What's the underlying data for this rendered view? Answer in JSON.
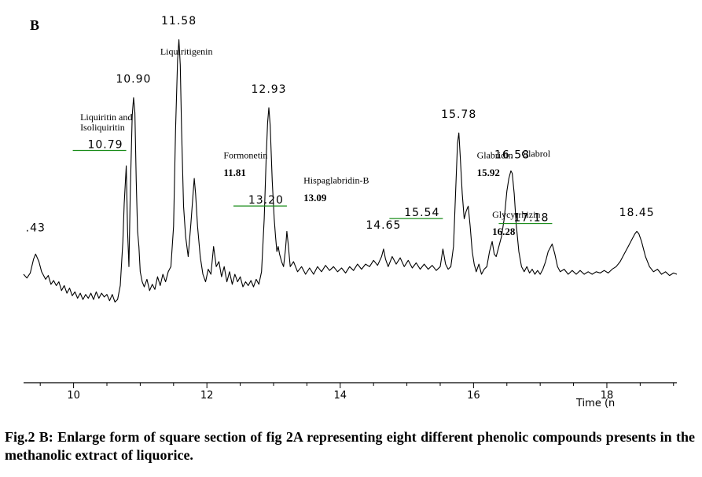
{
  "panel_label": "B",
  "caption": "Fig.2 B: Enlarge form of square section of fig 2A representing eight different phenolic compounds presents in the methanolic extract of liquorice.",
  "colors": {
    "trace": "#000000",
    "baseline_marker": "#1a8c1a"
  },
  "chart_data": {
    "type": "line",
    "title": "",
    "xlabel": "Time (n",
    "ylabel": "",
    "xlim": [
      9.25,
      19.05
    ],
    "ylim": [
      -2.0,
      12.3
    ],
    "x_ticks": [
      "10",
      "12",
      "14",
      "16",
      "18"
    ],
    "grid": false,
    "series": [
      {
        "points": [
          [
            9.25,
            2.3
          ],
          [
            9.3,
            2.15
          ],
          [
            9.35,
            2.35
          ],
          [
            9.4,
            2.9
          ],
          [
            9.43,
            3.1
          ],
          [
            9.48,
            2.8
          ],
          [
            9.52,
            2.4
          ],
          [
            9.58,
            2.1
          ],
          [
            9.62,
            2.25
          ],
          [
            9.66,
            1.9
          ],
          [
            9.7,
            2.05
          ],
          [
            9.74,
            1.85
          ],
          [
            9.78,
            2.0
          ],
          [
            9.82,
            1.65
          ],
          [
            9.86,
            1.85
          ],
          [
            9.9,
            1.55
          ],
          [
            9.94,
            1.75
          ],
          [
            9.98,
            1.45
          ],
          [
            10.02,
            1.6
          ],
          [
            10.06,
            1.35
          ],
          [
            10.1,
            1.55
          ],
          [
            10.14,
            1.3
          ],
          [
            10.18,
            1.5
          ],
          [
            10.22,
            1.35
          ],
          [
            10.26,
            1.55
          ],
          [
            10.3,
            1.3
          ],
          [
            10.34,
            1.6
          ],
          [
            10.38,
            1.35
          ],
          [
            10.42,
            1.55
          ],
          [
            10.46,
            1.4
          ],
          [
            10.5,
            1.5
          ],
          [
            10.54,
            1.25
          ],
          [
            10.58,
            1.5
          ],
          [
            10.62,
            1.2
          ],
          [
            10.66,
            1.3
          ],
          [
            10.7,
            1.85
          ],
          [
            10.74,
            3.6
          ],
          [
            10.76,
            5.1
          ],
          [
            10.79,
            6.6
          ],
          [
            10.81,
            4.0
          ],
          [
            10.83,
            2.6
          ],
          [
            10.85,
            5.5
          ],
          [
            10.88,
            8.6
          ],
          [
            10.9,
            9.3
          ],
          [
            10.92,
            8.7
          ],
          [
            10.94,
            6.0
          ],
          [
            10.96,
            4.0
          ],
          [
            10.98,
            3.4
          ],
          [
            11.0,
            2.4
          ],
          [
            11.03,
            2.0
          ],
          [
            11.06,
            1.8
          ],
          [
            11.1,
            2.1
          ],
          [
            11.14,
            1.65
          ],
          [
            11.18,
            1.9
          ],
          [
            11.22,
            1.7
          ],
          [
            11.26,
            2.2
          ],
          [
            11.3,
            1.85
          ],
          [
            11.34,
            2.3
          ],
          [
            11.38,
            2.0
          ],
          [
            11.42,
            2.4
          ],
          [
            11.46,
            2.6
          ],
          [
            11.5,
            4.2
          ],
          [
            11.53,
            8.0
          ],
          [
            11.56,
            10.8
          ],
          [
            11.58,
            11.6
          ],
          [
            11.6,
            10.6
          ],
          [
            11.62,
            8.0
          ],
          [
            11.65,
            5.0
          ],
          [
            11.68,
            3.8
          ],
          [
            11.72,
            3.0
          ],
          [
            11.76,
            4.3
          ],
          [
            11.79,
            5.4
          ],
          [
            11.81,
            6.1
          ],
          [
            11.83,
            5.5
          ],
          [
            11.86,
            4.2
          ],
          [
            11.9,
            3.0
          ],
          [
            11.94,
            2.3
          ],
          [
            11.98,
            2.0
          ],
          [
            12.02,
            2.5
          ],
          [
            12.06,
            2.3
          ],
          [
            12.1,
            3.4
          ],
          [
            12.14,
            2.6
          ],
          [
            12.18,
            2.8
          ],
          [
            12.22,
            2.2
          ],
          [
            12.26,
            2.6
          ],
          [
            12.3,
            2.0
          ],
          [
            12.34,
            2.4
          ],
          [
            12.38,
            1.9
          ],
          [
            12.42,
            2.3
          ],
          [
            12.46,
            2.0
          ],
          [
            12.5,
            2.2
          ],
          [
            12.54,
            1.8
          ],
          [
            12.58,
            2.0
          ],
          [
            12.62,
            1.85
          ],
          [
            12.66,
            2.05
          ],
          [
            12.7,
            1.8
          ],
          [
            12.74,
            2.1
          ],
          [
            12.78,
            1.9
          ],
          [
            12.82,
            2.4
          ],
          [
            12.86,
            4.5
          ],
          [
            12.89,
            7.0
          ],
          [
            12.91,
            8.3
          ],
          [
            12.93,
            8.9
          ],
          [
            12.95,
            8.2
          ],
          [
            12.98,
            6.0
          ],
          [
            13.01,
            4.5
          ],
          [
            13.03,
            3.8
          ],
          [
            13.05,
            3.2
          ],
          [
            13.07,
            3.4
          ],
          [
            13.09,
            3.1
          ],
          [
            13.12,
            2.8
          ],
          [
            13.15,
            2.6
          ],
          [
            13.18,
            3.3
          ],
          [
            13.2,
            4.0
          ],
          [
            13.22,
            3.5
          ],
          [
            13.25,
            2.6
          ],
          [
            13.3,
            2.8
          ],
          [
            13.36,
            2.4
          ],
          [
            13.42,
            2.6
          ],
          [
            13.48,
            2.3
          ],
          [
            13.54,
            2.55
          ],
          [
            13.6,
            2.3
          ],
          [
            13.66,
            2.6
          ],
          [
            13.72,
            2.4
          ],
          [
            13.78,
            2.65
          ],
          [
            13.84,
            2.45
          ],
          [
            13.9,
            2.6
          ],
          [
            13.96,
            2.4
          ],
          [
            14.02,
            2.55
          ],
          [
            14.08,
            2.35
          ],
          [
            14.14,
            2.6
          ],
          [
            14.2,
            2.45
          ],
          [
            14.26,
            2.7
          ],
          [
            14.32,
            2.5
          ],
          [
            14.38,
            2.7
          ],
          [
            14.44,
            2.6
          ],
          [
            14.5,
            2.85
          ],
          [
            14.56,
            2.65
          ],
          [
            14.62,
            3.0
          ],
          [
            14.65,
            3.3
          ],
          [
            14.68,
            2.9
          ],
          [
            14.72,
            2.6
          ],
          [
            14.78,
            3.0
          ],
          [
            14.84,
            2.7
          ],
          [
            14.9,
            2.95
          ],
          [
            14.96,
            2.6
          ],
          [
            15.02,
            2.85
          ],
          [
            15.08,
            2.55
          ],
          [
            15.14,
            2.75
          ],
          [
            15.2,
            2.5
          ],
          [
            15.26,
            2.7
          ],
          [
            15.32,
            2.5
          ],
          [
            15.38,
            2.65
          ],
          [
            15.44,
            2.45
          ],
          [
            15.5,
            2.6
          ],
          [
            15.54,
            3.3
          ],
          [
            15.58,
            2.7
          ],
          [
            15.62,
            2.5
          ],
          [
            15.66,
            2.6
          ],
          [
            15.7,
            3.4
          ],
          [
            15.73,
            5.5
          ],
          [
            15.76,
            7.5
          ],
          [
            15.78,
            7.9
          ],
          [
            15.8,
            7.0
          ],
          [
            15.83,
            5.5
          ],
          [
            15.86,
            4.5
          ],
          [
            15.89,
            4.8
          ],
          [
            15.92,
            5.0
          ],
          [
            15.95,
            4.2
          ],
          [
            15.98,
            3.2
          ],
          [
            16.01,
            2.7
          ],
          [
            16.04,
            2.4
          ],
          [
            16.08,
            2.7
          ],
          [
            16.12,
            2.3
          ],
          [
            16.16,
            2.5
          ],
          [
            16.2,
            2.6
          ],
          [
            16.24,
            3.2
          ],
          [
            16.28,
            3.6
          ],
          [
            16.31,
            3.1
          ],
          [
            16.34,
            3.0
          ],
          [
            16.38,
            3.4
          ],
          [
            16.42,
            3.8
          ],
          [
            16.46,
            4.5
          ],
          [
            16.5,
            5.6
          ],
          [
            16.53,
            6.1
          ],
          [
            16.56,
            6.4
          ],
          [
            16.58,
            6.3
          ],
          [
            16.61,
            5.5
          ],
          [
            16.64,
            4.3
          ],
          [
            16.68,
            3.2
          ],
          [
            16.72,
            2.6
          ],
          [
            16.76,
            2.4
          ],
          [
            16.8,
            2.6
          ],
          [
            16.84,
            2.35
          ],
          [
            16.88,
            2.5
          ],
          [
            16.92,
            2.3
          ],
          [
            16.96,
            2.45
          ],
          [
            17.0,
            2.3
          ],
          [
            17.04,
            2.5
          ],
          [
            17.08,
            2.8
          ],
          [
            17.12,
            3.2
          ],
          [
            17.18,
            3.5
          ],
          [
            17.22,
            3.1
          ],
          [
            17.26,
            2.6
          ],
          [
            17.3,
            2.4
          ],
          [
            17.36,
            2.5
          ],
          [
            17.42,
            2.3
          ],
          [
            17.48,
            2.45
          ],
          [
            17.54,
            2.3
          ],
          [
            17.6,
            2.45
          ],
          [
            17.66,
            2.3
          ],
          [
            17.72,
            2.4
          ],
          [
            17.78,
            2.3
          ],
          [
            17.84,
            2.4
          ],
          [
            17.9,
            2.35
          ],
          [
            17.96,
            2.45
          ],
          [
            18.02,
            2.35
          ],
          [
            18.08,
            2.5
          ],
          [
            18.14,
            2.6
          ],
          [
            18.2,
            2.8
          ],
          [
            18.26,
            3.1
          ],
          [
            18.32,
            3.4
          ],
          [
            18.38,
            3.7
          ],
          [
            18.42,
            3.9
          ],
          [
            18.45,
            4.0
          ],
          [
            18.48,
            3.9
          ],
          [
            18.52,
            3.6
          ],
          [
            18.58,
            3.0
          ],
          [
            18.64,
            2.6
          ],
          [
            18.7,
            2.4
          ],
          [
            18.76,
            2.5
          ],
          [
            18.82,
            2.3
          ],
          [
            18.88,
            2.4
          ],
          [
            18.94,
            2.25
          ],
          [
            19.0,
            2.35
          ],
          [
            19.05,
            2.3
          ]
        ]
      }
    ],
    "peak_labels": [
      {
        "text": "⁠.43",
        "x": 9.43,
        "y": 4.0,
        "marker": false
      },
      {
        "text": "10.79",
        "x": 10.79,
        "y": 7.3,
        "marker": true
      },
      {
        "text": "10.90",
        "x": 10.9,
        "y": 9.9,
        "marker": false
      },
      {
        "text": "11.58",
        "x": 11.58,
        "y": 12.2,
        "marker": false
      },
      {
        "text": "12.93",
        "x": 12.93,
        "y": 9.5,
        "marker": false
      },
      {
        "text": "13.20",
        "x": 13.2,
        "y": 5.1,
        "marker": true
      },
      {
        "text": "14.65",
        "x": 14.65,
        "y": 4.1,
        "marker": false
      },
      {
        "text": "15.54",
        "x": 15.54,
        "y": 4.6,
        "marker": true
      },
      {
        "text": "15.78",
        "x": 15.78,
        "y": 8.5,
        "marker": false
      },
      {
        "text": "16.58",
        "x": 16.58,
        "y": 6.9,
        "marker": false
      },
      {
        "text": "17.18",
        "x": 17.18,
        "y": 4.4,
        "marker": true
      },
      {
        "text": "18.45",
        "x": 18.45,
        "y": 4.6,
        "marker": false
      }
    ],
    "annotations": [
      {
        "lines": [
          "Liquiritigenin"
        ],
        "x": 11.3,
        "y": 11.0,
        "bold": false
      },
      {
        "lines": [
          "Liquiritin and",
          "Isoliquiritin"
        ],
        "x": 10.1,
        "y": 8.4,
        "bold": false
      },
      {
        "lines": [
          "Formonetin"
        ],
        "x": 12.25,
        "y": 6.9,
        "bold": false
      },
      {
        "lines": [
          "11.81"
        ],
        "x": 12.25,
        "y": 6.2,
        "bold": true
      },
      {
        "lines": [
          "Hispaglabridin-B"
        ],
        "x": 13.45,
        "y": 5.9,
        "bold": false
      },
      {
        "lines": [
          "13.09"
        ],
        "x": 13.45,
        "y": 5.2,
        "bold": true
      },
      {
        "lines": [
          "Glabridin"
        ],
        "x": 16.05,
        "y": 6.9,
        "bold": false
      },
      {
        "lines": [
          "15.92"
        ],
        "x": 16.05,
        "y": 6.2,
        "bold": true
      },
      {
        "lines": [
          "Glabrol"
        ],
        "x": 16.72,
        "y": 6.95,
        "bold": false
      },
      {
        "lines": [
          "Glycyrrhizin"
        ],
        "x": 16.28,
        "y": 4.55,
        "bold": false
      },
      {
        "lines": [
          "16.28"
        ],
        "x": 16.28,
        "y": 3.85,
        "bold": true
      }
    ]
  }
}
